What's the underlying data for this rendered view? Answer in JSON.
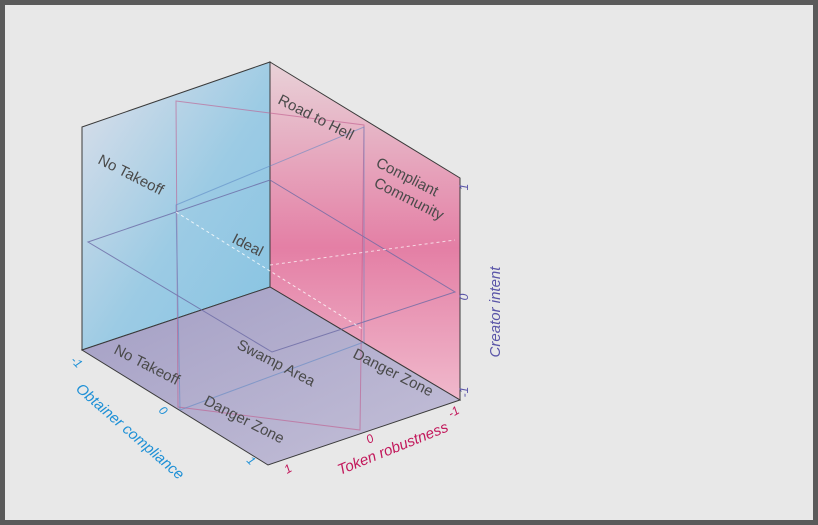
{
  "axes": {
    "x": {
      "title": "Token robustness",
      "ticks": [
        "-1",
        "0",
        "1"
      ],
      "color": "#c2185b"
    },
    "y": {
      "title": "Obtainer compliance",
      "ticks": [
        "-1",
        "0",
        "1"
      ],
      "color": "#1e90d6"
    },
    "z": {
      "title": "Creator intent",
      "ticks": [
        "1",
        "0",
        "-1"
      ],
      "color": "#5a55a8"
    }
  },
  "regions": {
    "no_takeoff_back": "No Takeoff",
    "road_to_hell": "Road to Hell",
    "compliant_community_1": "Compliant",
    "compliant_community_2": "Community",
    "ideal": "Ideal",
    "swamp_area": "Swamp Area",
    "no_takeoff_floor": "No Takeoff",
    "danger_zone_floor_front": "Danger Zone",
    "danger_zone_floor_right": "Danger Zone"
  },
  "colors": {
    "left_panel": "#86c3e2",
    "right_panel": "#e47fa5",
    "floor": "#a8a2c8",
    "edge": "#3a3a3a"
  }
}
